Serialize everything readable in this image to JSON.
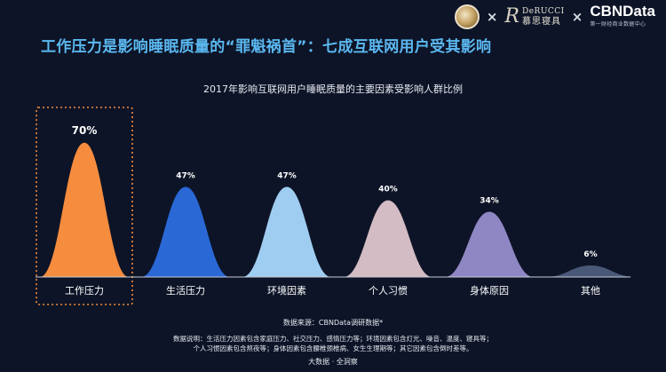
{
  "header": {
    "logo_cbn_main": "CBNData",
    "logo_cbn_sub": "第一财经商业数据中心",
    "logo_derucci_en": "DeRUCCI",
    "logo_derucci_cn": "慕思寝具",
    "separator": "×"
  },
  "headline": "工作压力是影响睡眠质量的“罪魁祸首”：七成互联网用户受其影响",
  "chart_data": {
    "type": "area",
    "title": "2017年影响互联网用户睡眠质量的主要因素受影响人群比例",
    "categories": [
      "工作压力",
      "生活压力",
      "环境因素",
      "个人习惯",
      "身体原因",
      "其他"
    ],
    "values": [
      70,
      47,
      47,
      40,
      34,
      6
    ],
    "value_labels": [
      "70%",
      "47%",
      "47%",
      "40%",
      "34%",
      "6%"
    ],
    "unit": "%",
    "ylim": [
      0,
      75
    ],
    "grid": false,
    "highlight_category": "工作压力",
    "colors": [
      "#f68c3e",
      "#2a68d6",
      "#9fcdf2",
      "#d4bcc4",
      "#8f86c4",
      "#4a5878"
    ],
    "axis_color": "#c8ccd6"
  },
  "footer": {
    "source": "数据来源：CBNData调研数据*",
    "note_line1": "数据说明：生活压力因素包含家庭压力、社交压力、感情压力等；环境因素包含灯光、噪音、温度、寝具等；",
    "note_line2": "个人习惯因素包含熬夜等；身体因素包含腰椎颈椎病、女生生理期等；其它因素包含倒时差等。",
    "brand": "大数据 · 全洞察"
  }
}
